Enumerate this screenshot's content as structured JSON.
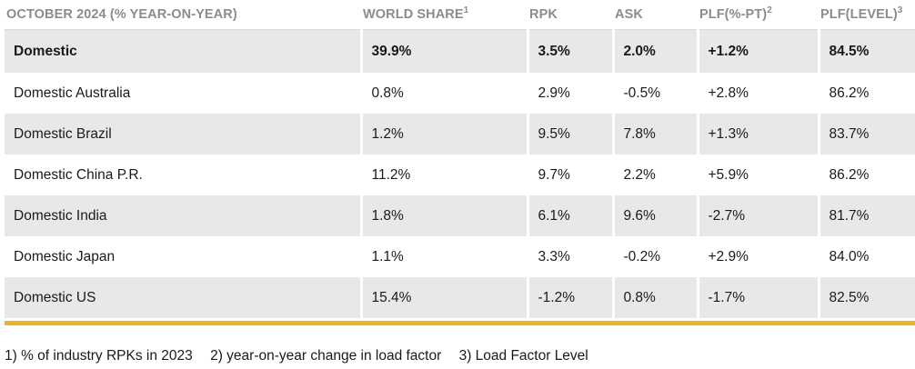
{
  "headers": [
    {
      "text": "OCTOBER 2024 (% YEAR-ON-YEAR)",
      "sup": ""
    },
    {
      "text": "WORLD SHARE",
      "sup": "1"
    },
    {
      "text": "RPK",
      "sup": ""
    },
    {
      "text": "ASK",
      "sup": ""
    },
    {
      "text": "PLF(%-PT)",
      "sup": "2"
    },
    {
      "text": "PLF(LEVEL)",
      "sup": "3"
    }
  ],
  "rows": [
    {
      "cells": [
        "Domestic",
        "39.9%",
        "3.5%",
        "2.0%",
        "+1.2%",
        "84.5%"
      ]
    },
    {
      "cells": [
        "Domestic Australia",
        "0.8%",
        "2.9%",
        "-0.5%",
        "+2.8%",
        "86.2%"
      ]
    },
    {
      "cells": [
        "Domestic Brazil",
        "1.2%",
        "9.5%",
        "7.8%",
        "+1.3%",
        "83.7%"
      ]
    },
    {
      "cells": [
        "Domestic China P.R.",
        "11.2%",
        "9.7%",
        "2.2%",
        "+5.9%",
        "86.2%"
      ]
    },
    {
      "cells": [
        "Domestic India",
        "1.8%",
        "6.1%",
        "9.6%",
        "-2.7%",
        "81.7%"
      ]
    },
    {
      "cells": [
        "Domestic Japan",
        "1.1%",
        "3.3%",
        "-0.2%",
        "+2.9%",
        "84.0%"
      ]
    },
    {
      "cells": [
        "Domestic US",
        "15.4%",
        "-1.2%",
        "0.8%",
        "-1.7%",
        "82.5%"
      ]
    }
  ],
  "footnotes": [
    "1) % of industry RPKs in 2023",
    "2) year-on-year change in load factor",
    "3) Load Factor Level"
  ],
  "colors": {
    "accent": "#f0b323",
    "row_shade": "#e8e8e8",
    "header_text": "#8c8c8c"
  }
}
